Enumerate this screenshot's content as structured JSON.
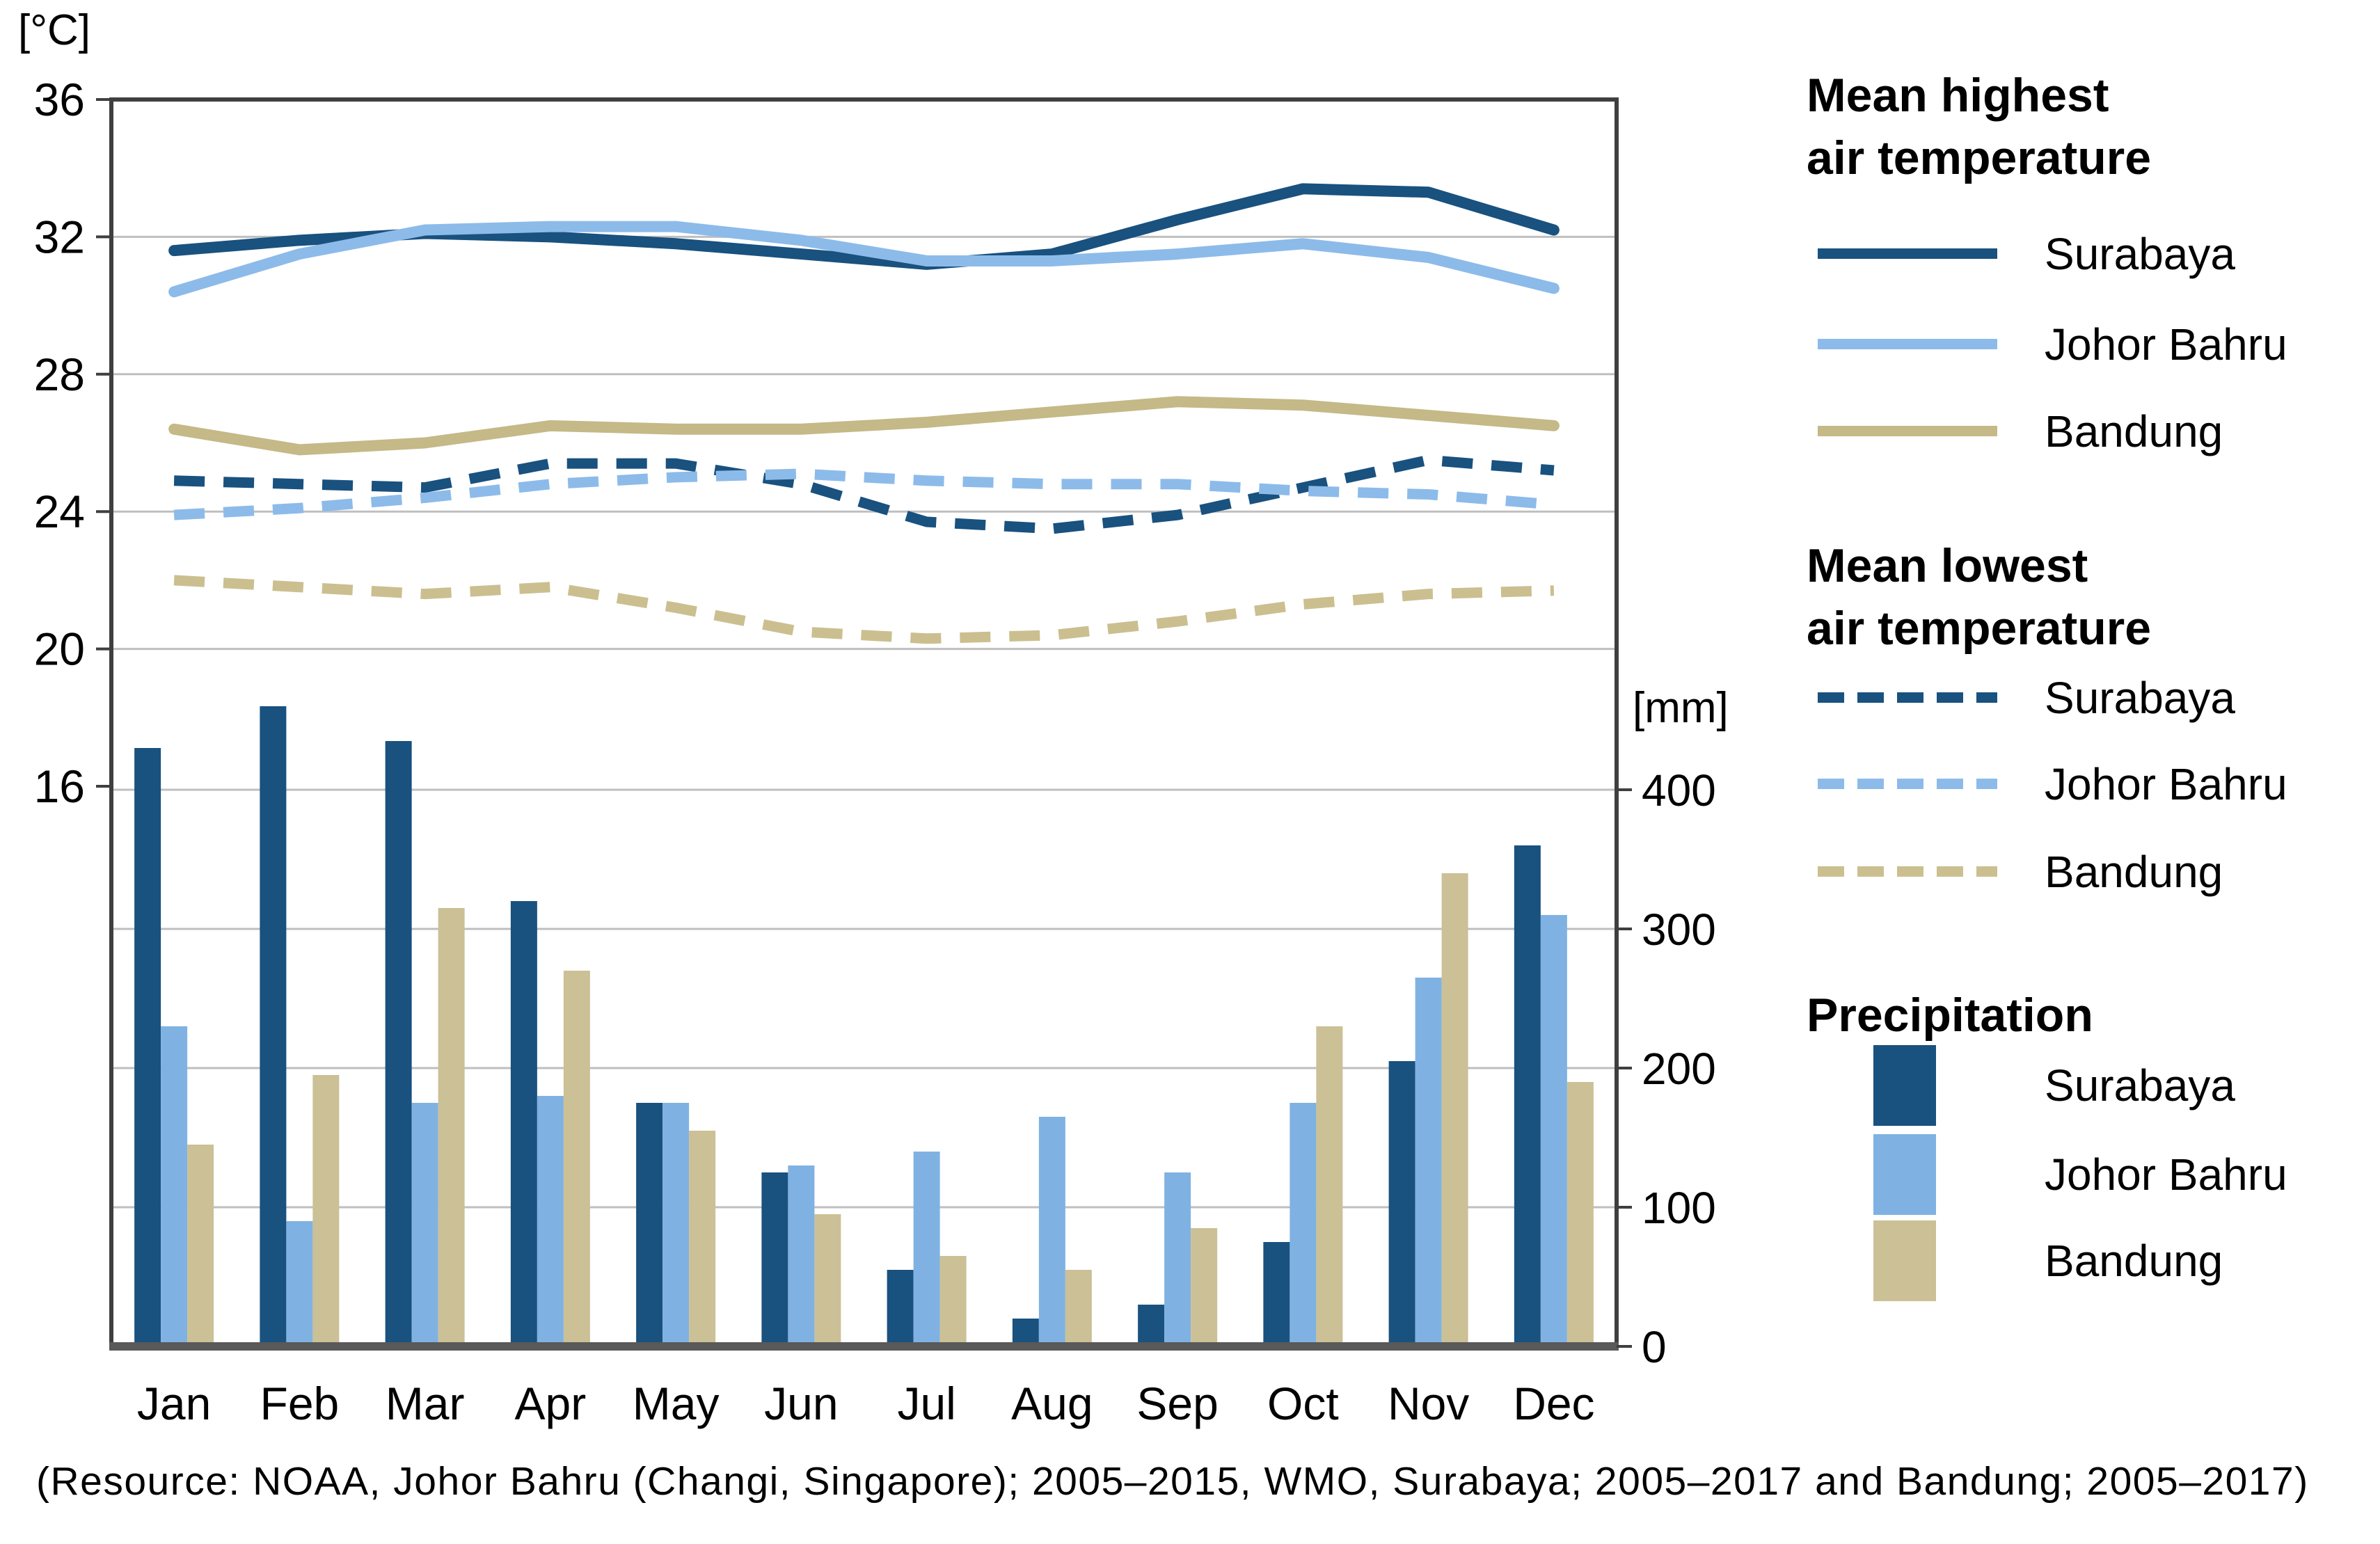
{
  "axes": {
    "temp_unit": "[°C]",
    "precip_unit": "[mm]"
  },
  "caption": "(Resource: NOAA, Johor Bahru (Changi, Singapore); 2005–2015, WMO, Surabaya; 2005–2017 and Bandung; 2005–2017)",
  "chart_data": {
    "type": "combo (grouped bar + line)",
    "categories": [
      "Jan",
      "Feb",
      "Mar",
      "Apr",
      "May",
      "Jun",
      "Jul",
      "Aug",
      "Sep",
      "Oct",
      "Nov",
      "Dec"
    ],
    "temp_axis": {
      "unit": "[°C]",
      "ticks": [
        36,
        32,
        28,
        24,
        20,
        16
      ],
      "max": 36,
      "grid": "on"
    },
    "precip_axis": {
      "unit": "[mm]",
      "ticks": [
        400,
        300,
        200,
        100,
        0
      ],
      "range": [
        0,
        400
      ],
      "grid": "on"
    },
    "layout_hints": {
      "legend_position": "right",
      "axis_alignment": "4 °C of the temperature axis spans the same height as 100 mm of the precipitation axis"
    },
    "series": [
      {
        "group": "Mean highest air temperature",
        "name": "Surabaya",
        "style": "solid-line",
        "color": "#19517f",
        "values_c": [
          31.6,
          31.9,
          32.1,
          32.0,
          31.8,
          31.5,
          31.2,
          31.5,
          32.5,
          33.4,
          33.3,
          32.2
        ]
      },
      {
        "group": "Mean highest air temperature",
        "name": "Johor Bahru",
        "style": "solid-line",
        "color": "#8cbbea",
        "values_c": [
          30.4,
          31.5,
          32.2,
          32.3,
          32.3,
          31.9,
          31.3,
          31.3,
          31.5,
          31.8,
          31.4,
          30.5
        ]
      },
      {
        "group": "Mean highest air temperature",
        "name": "Bandung",
        "style": "solid-line",
        "color": "#c4b987",
        "values_c": [
          26.4,
          25.8,
          26.0,
          26.5,
          26.4,
          26.4,
          26.6,
          26.9,
          27.2,
          27.1,
          26.8,
          26.5
        ]
      },
      {
        "group": "Mean lowest air temperature",
        "name": "Surabaya",
        "style": "dashed-line",
        "color": "#19517f",
        "values_c": [
          24.9,
          24.8,
          24.7,
          25.4,
          25.4,
          24.8,
          23.7,
          23.5,
          23.9,
          24.7,
          25.5,
          25.2
        ]
      },
      {
        "group": "Mean lowest air temperature",
        "name": "Johor Bahru",
        "style": "dashed-line",
        "color": "#8cbbea",
        "values_c": [
          23.9,
          24.1,
          24.4,
          24.8,
          25.0,
          25.1,
          24.9,
          24.8,
          24.8,
          24.6,
          24.5,
          24.2
        ]
      },
      {
        "group": "Mean lowest air temperature",
        "name": "Bandung",
        "style": "dashed-line",
        "color": "#cbbf90",
        "values_c": [
          22.0,
          21.8,
          21.6,
          21.8,
          21.2,
          20.5,
          20.3,
          20.4,
          20.8,
          21.3,
          21.6,
          21.7
        ]
      },
      {
        "group": "Precipitation",
        "name": "Surabaya",
        "style": "bar",
        "color": "#19517f",
        "values_mm": [
          430,
          460,
          435,
          320,
          175,
          125,
          55,
          20,
          30,
          75,
          205,
          360
        ]
      },
      {
        "group": "Precipitation",
        "name": "Johor Bahru",
        "style": "bar",
        "color": "#7fb2e2",
        "values_mm": [
          230,
          90,
          175,
          180,
          175,
          130,
          140,
          165,
          125,
          175,
          265,
          310
        ]
      },
      {
        "group": "Precipitation",
        "name": "Bandung",
        "style": "bar",
        "color": "#cbc096",
        "values_mm": [
          145,
          195,
          315,
          270,
          155,
          95,
          65,
          55,
          85,
          230,
          340,
          190
        ]
      }
    ],
    "colors": {
      "surabaya": "#19517f",
      "johor_bahru_line": "#8cbbea",
      "johor_bahru_bar": "#7fb2e2",
      "bandung_line": "#c4b987",
      "bandung_bar": "#cbc096",
      "gridline": "#bfbfbf",
      "frame": "#3f3f3f",
      "baseline": "#595959",
      "text": "#000000"
    }
  },
  "legend": {
    "sections": [
      {
        "id": "mean-highest",
        "title_lines": [
          "Mean highest",
          "air temperature"
        ],
        "swatch": "solid-line",
        "entries": [
          {
            "label": "Surabaya",
            "color": "#19517f"
          },
          {
            "label": "Johor Bahru",
            "color": "#8cbbea"
          },
          {
            "label": "Bandung",
            "color": "#c4b987"
          }
        ]
      },
      {
        "id": "mean-lowest",
        "title_lines": [
          "Mean lowest",
          "air temperature"
        ],
        "swatch": "dashed-line",
        "entries": [
          {
            "label": "Surabaya",
            "color": "#19517f"
          },
          {
            "label": "Johor Bahru",
            "color": "#8cbbea"
          },
          {
            "label": "Bandung",
            "color": "#cbbf90"
          }
        ]
      },
      {
        "id": "precipitation",
        "title_lines": [
          "Precipitation"
        ],
        "swatch": "square",
        "entries": [
          {
            "label": "Surabaya",
            "color": "#19517f"
          },
          {
            "label": "Johor Bahru",
            "color": "#7fb2e2"
          },
          {
            "label": "Bandung",
            "color": "#cbc096"
          }
        ]
      }
    ]
  }
}
